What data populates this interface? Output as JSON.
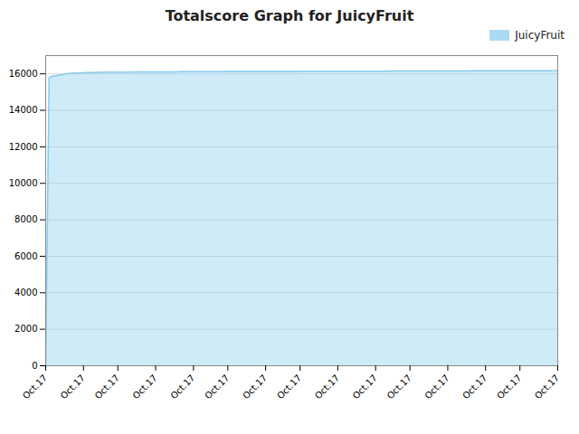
{
  "chart_data": {
    "type": "area",
    "title": "Totalscore Graph for JuicyFruit",
    "x": [
      0,
      1,
      2,
      3,
      4,
      5,
      6,
      7,
      8,
      9,
      10,
      11,
      12,
      13,
      14,
      15,
      16,
      17,
      18,
      19,
      20,
      21,
      22,
      23,
      24,
      25,
      26,
      27,
      28,
      29,
      30,
      31,
      32,
      33,
      34,
      35,
      36,
      37,
      38,
      39,
      40,
      41,
      42,
      43,
      44,
      45,
      46,
      47,
      48,
      49,
      50,
      51,
      52,
      53,
      54,
      55,
      56,
      57,
      58,
      59,
      60,
      61,
      62,
      63,
      64,
      65,
      66,
      67,
      68,
      69,
      70,
      71,
      72,
      73,
      74,
      75,
      76,
      77,
      78,
      79,
      80,
      81,
      82,
      83,
      84,
      85,
      86,
      87,
      88,
      89,
      90,
      91,
      92,
      93,
      94,
      95,
      96,
      97,
      98,
      99,
      100,
      101,
      102,
      103,
      104,
      105,
      106,
      107,
      108,
      109,
      110,
      111,
      112,
      113,
      114,
      115,
      116,
      117,
      118,
      119,
      120,
      121,
      122,
      123,
      124,
      125,
      126,
      127,
      128,
      129,
      130,
      131,
      132,
      133,
      134,
      135,
      136,
      137,
      138,
      139,
      140,
      141,
      142,
      143,
      144,
      145,
      146,
      147,
      148,
      149
    ],
    "series": [
      {
        "name": "JuicyFruit",
        "color": "#88ccee",
        "values": [
          100,
          15800,
          15870,
          15900,
          15930,
          15960,
          16010,
          16020,
          16030,
          16040,
          16050,
          16060,
          16065,
          16070,
          16075,
          16080,
          16085,
          16088,
          16090,
          16092,
          16094,
          16096,
          16098,
          16099,
          16100,
          16101,
          16102,
          16103,
          16104,
          16105,
          16106,
          16107,
          16108,
          16109,
          16110,
          16111,
          16112,
          16113,
          16114,
          16115,
          16116,
          16117,
          16118,
          16119,
          16120,
          16121,
          16122,
          16123,
          16124,
          16125,
          16125,
          16126,
          16127,
          16128,
          16128,
          16129,
          16130,
          16130,
          16131,
          16131,
          16132,
          16132,
          16133,
          16133,
          16134,
          16134,
          16135,
          16135,
          16136,
          16136,
          16137,
          16137,
          16138,
          16138,
          16139,
          16139,
          16140,
          16140,
          16141,
          16141,
          16142,
          16142,
          16143,
          16143,
          16144,
          16144,
          16145,
          16145,
          16146,
          16146,
          16147,
          16147,
          16148,
          16148,
          16149,
          16149,
          16150,
          16150,
          16151,
          16151,
          16152,
          16152,
          16153,
          16153,
          16154,
          16154,
          16155,
          16155,
          16156,
          16156,
          16157,
          16157,
          16158,
          16158,
          16159,
          16159,
          16160,
          16160,
          16161,
          16161,
          16162,
          16162,
          16163,
          16163,
          16164,
          16164,
          16165,
          16165,
          16166,
          16166,
          16167,
          16167,
          16168,
          16168,
          16169,
          16169,
          16170,
          16170,
          16171,
          16171,
          16172,
          16172,
          16173,
          16173,
          16174,
          16174,
          16175,
          16175,
          16176,
          16200
        ]
      }
    ],
    "xlim": [
      0,
      149
    ],
    "xticks": [
      {
        "value": 0,
        "label": "Oct.17"
      },
      {
        "value": 11,
        "label": "Oct.17"
      },
      {
        "value": 21,
        "label": "Oct.17"
      },
      {
        "value": 32,
        "label": "Oct.17"
      },
      {
        "value": 43,
        "label": "Oct.17"
      },
      {
        "value": 53,
        "label": "Oct.17"
      },
      {
        "value": 64,
        "label": "Oct.17"
      },
      {
        "value": 74,
        "label": "Oct.17"
      },
      {
        "value": 85,
        "label": "Oct.17"
      },
      {
        "value": 96,
        "label": "Oct.17"
      },
      {
        "value": 106,
        "label": "Oct.17"
      },
      {
        "value": 117,
        "label": "Oct.17"
      },
      {
        "value": 128,
        "label": "Oct.17"
      },
      {
        "value": 138,
        "label": "Oct.17"
      },
      {
        "value": 149,
        "label": "Oct.17"
      }
    ],
    "ylim": [
      0,
      17000
    ],
    "yticks": [
      0,
      2000,
      4000,
      6000,
      8000,
      10000,
      12000,
      14000,
      16000
    ],
    "grid": true,
    "legend": "top-right"
  }
}
